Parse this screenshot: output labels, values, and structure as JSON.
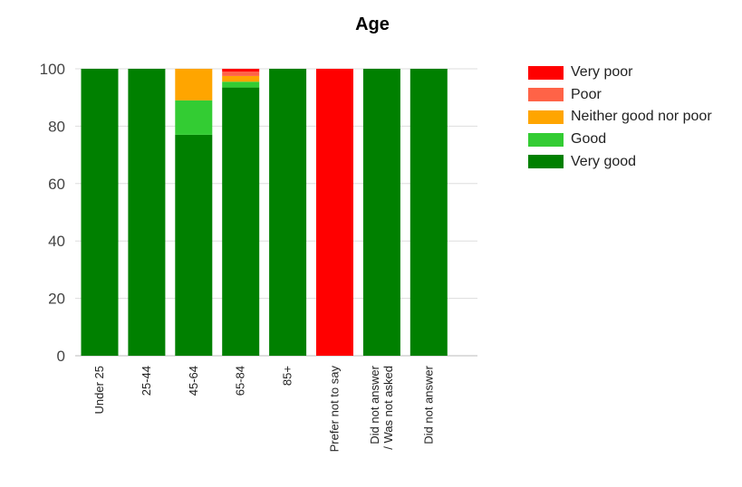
{
  "chart_data": {
    "type": "bar",
    "stacked": true,
    "title": "Age",
    "xlabel": "",
    "ylabel": "",
    "ylim": [
      0,
      100
    ],
    "yticks": [
      0,
      20,
      40,
      60,
      80,
      100
    ],
    "grid": true,
    "legend_position": "right",
    "categories": [
      [
        "Under 25"
      ],
      [
        "25-44"
      ],
      [
        "45-64"
      ],
      [
        "65-84"
      ],
      [
        "85+"
      ],
      [
        "Prefer not to say"
      ],
      [
        "Did not answer",
        "/ Was not asked"
      ],
      [
        "Did not answer"
      ]
    ],
    "series": [
      {
        "name": "Very good",
        "color": "#008000",
        "values": [
          100,
          100,
          77,
          93.5,
          100,
          0,
          100,
          100
        ]
      },
      {
        "name": "Good",
        "color": "#33cc33",
        "values": [
          0,
          0,
          12,
          2,
          0,
          0,
          0,
          0
        ]
      },
      {
        "name": "Neither good nor poor",
        "color": "#ffa500",
        "values": [
          0,
          0,
          11,
          2,
          0,
          0,
          0,
          0
        ]
      },
      {
        "name": "Poor",
        "color": "#ff6347",
        "values": [
          0,
          0,
          0,
          1.5,
          0,
          0,
          0,
          0
        ]
      },
      {
        "name": "Very poor",
        "color": "#ff0000",
        "values": [
          0,
          0,
          0,
          1,
          0,
          100,
          0,
          0
        ]
      }
    ],
    "legend_order": [
      "Very poor",
      "Poor",
      "Neither good nor poor",
      "Good",
      "Very good"
    ]
  }
}
